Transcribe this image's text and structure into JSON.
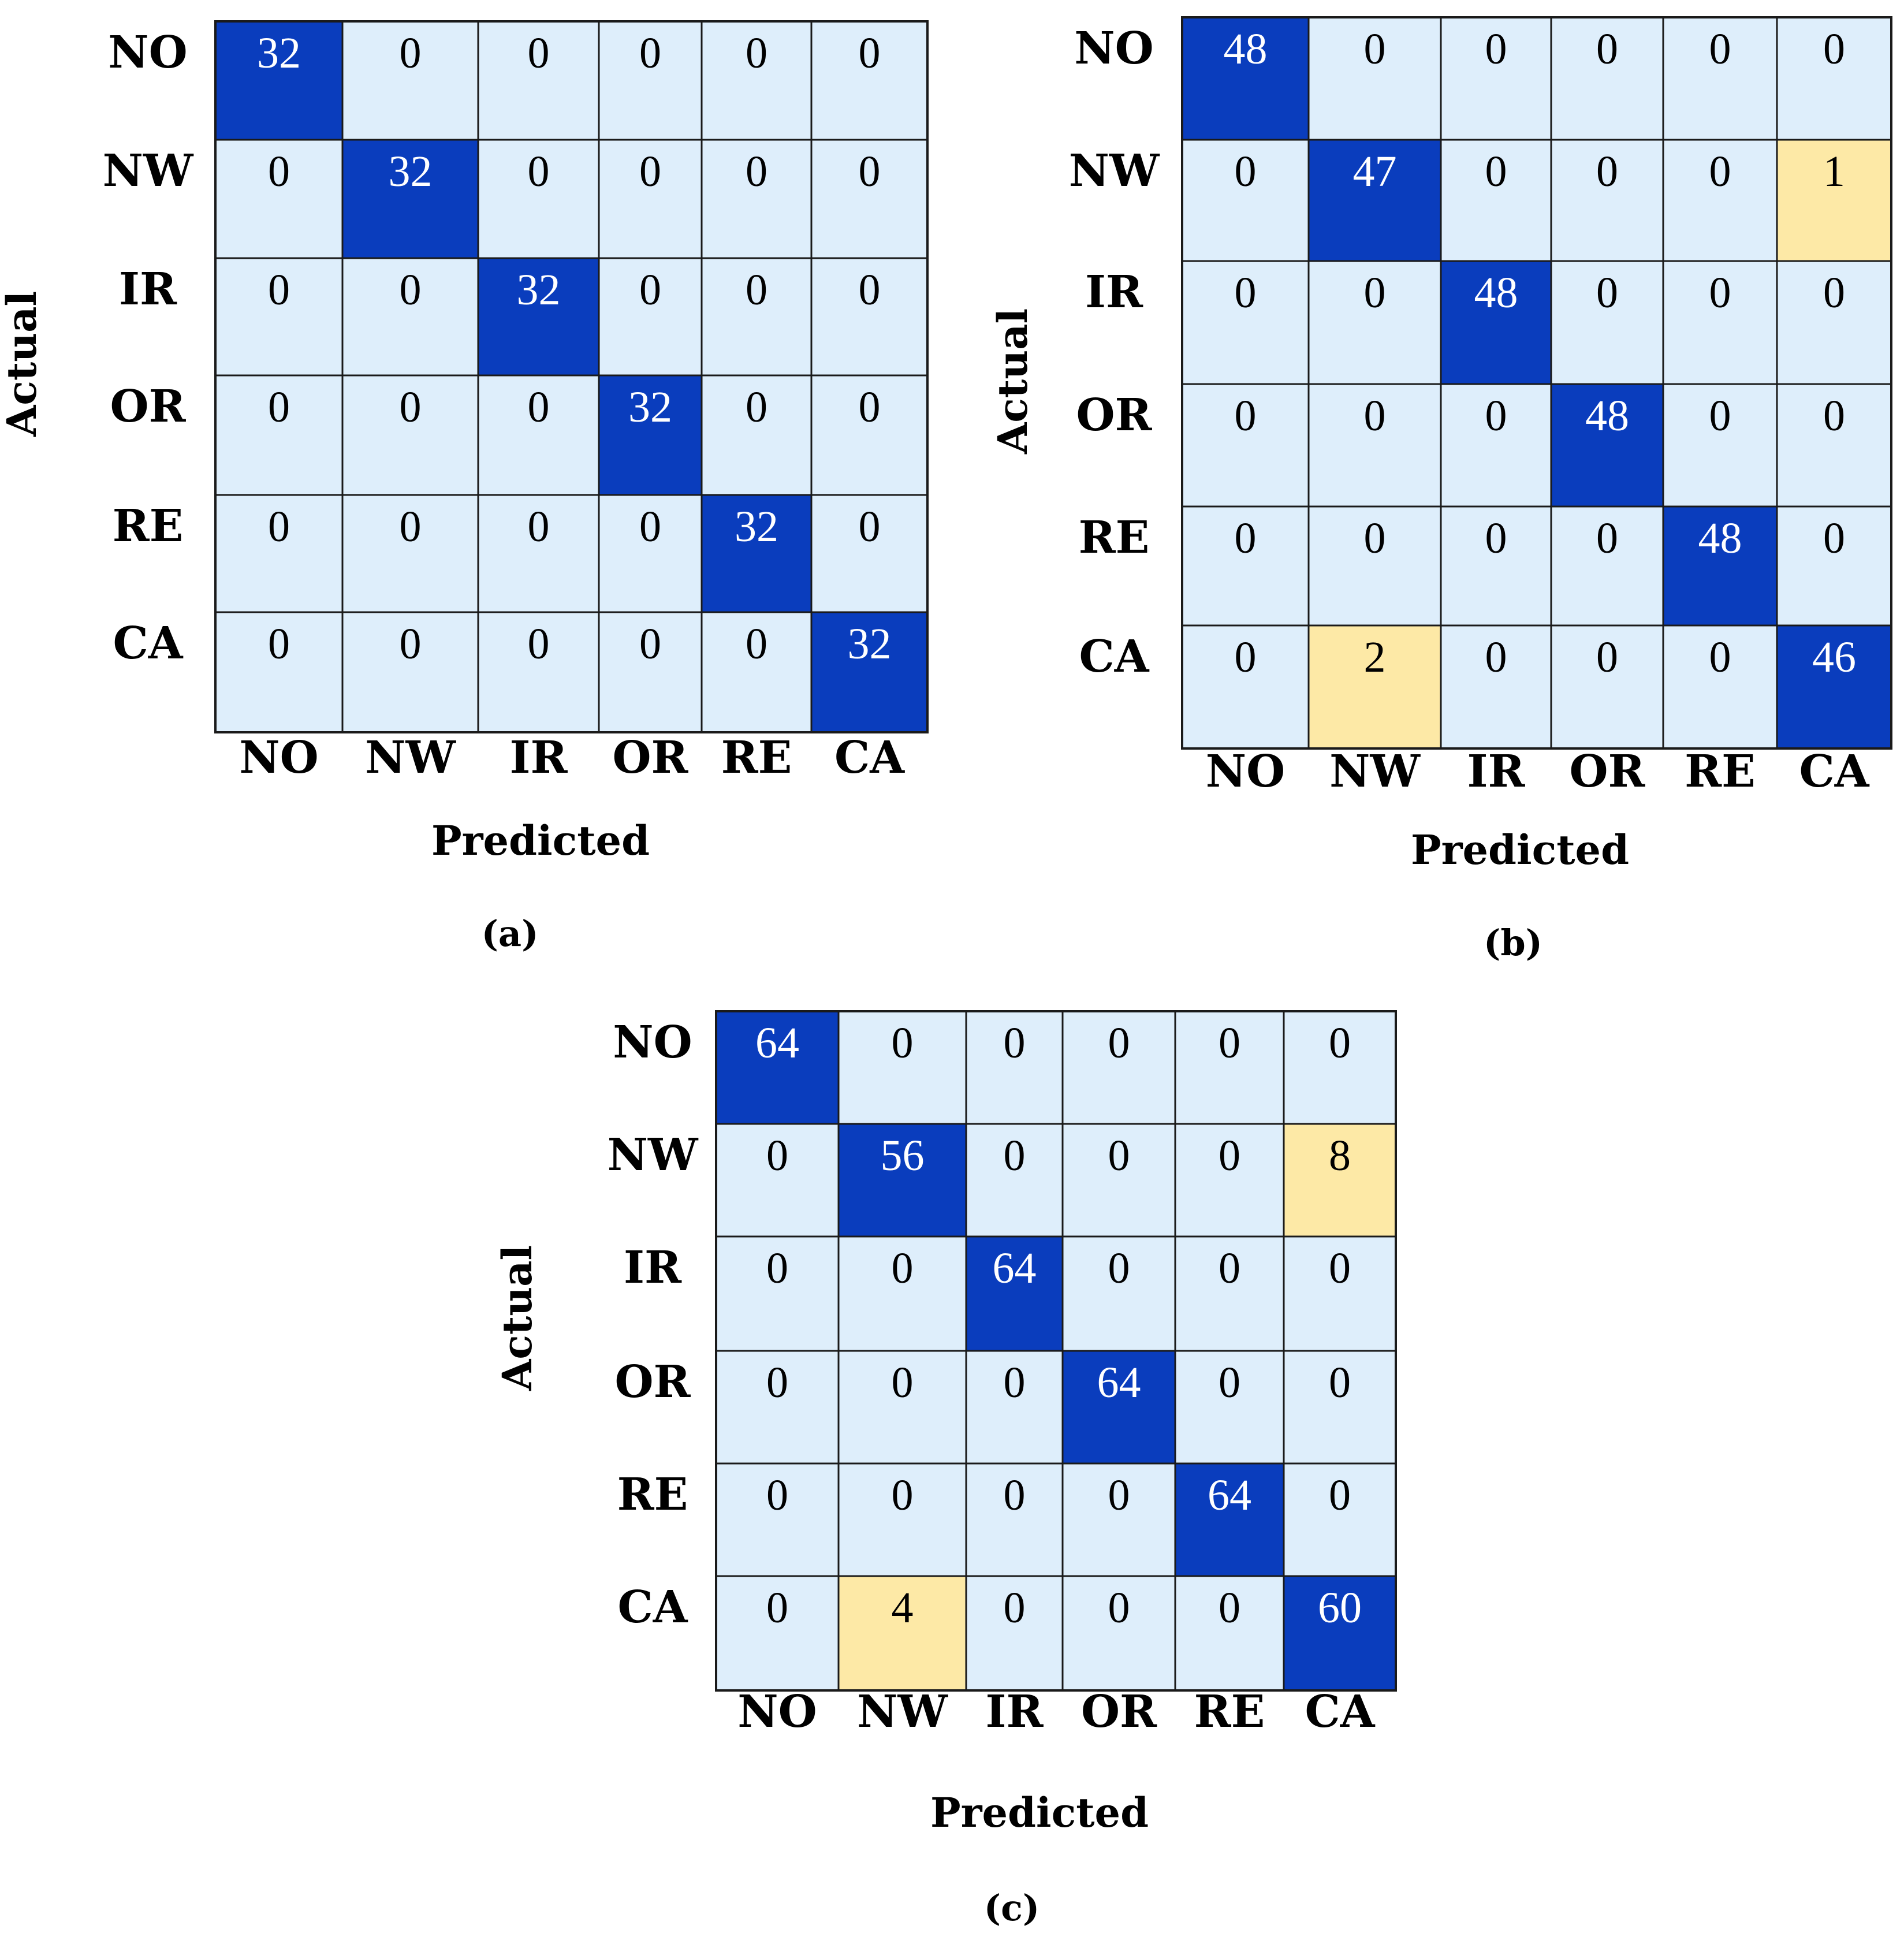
{
  "colors": {
    "diagonal": "#0a3dbd",
    "diagonal_text": "#ffffff",
    "misclassified": "#fde9a6",
    "zero": "#deeefb",
    "grid_line": "#1a1a1a",
    "text": "#000000"
  },
  "chart_data": [
    {
      "type": "heatmap",
      "panel_label": "(a)",
      "xlabel": "Predicted",
      "ylabel": "Actual",
      "row_labels": [
        "NO",
        "NW",
        "IR",
        "OR",
        "RE",
        "CA"
      ],
      "col_labels": [
        "NO",
        "NW",
        "IR",
        "OR",
        "RE",
        "CA"
      ],
      "values": [
        [
          32,
          0,
          0,
          0,
          0,
          0
        ],
        [
          0,
          32,
          0,
          0,
          0,
          0
        ],
        [
          0,
          0,
          32,
          0,
          0,
          0
        ],
        [
          0,
          0,
          0,
          32,
          0,
          0
        ],
        [
          0,
          0,
          0,
          0,
          32,
          0
        ],
        [
          0,
          0,
          0,
          0,
          0,
          32
        ]
      ]
    },
    {
      "type": "heatmap",
      "panel_label": "(b)",
      "xlabel": "Predicted",
      "ylabel": "Actual",
      "row_labels": [
        "NO",
        "NW",
        "IR",
        "OR",
        "RE",
        "CA"
      ],
      "col_labels": [
        "NO",
        "NW",
        "IR",
        "OR",
        "RE",
        "CA"
      ],
      "values": [
        [
          48,
          0,
          0,
          0,
          0,
          0
        ],
        [
          0,
          47,
          0,
          0,
          0,
          1
        ],
        [
          0,
          0,
          48,
          0,
          0,
          0
        ],
        [
          0,
          0,
          0,
          48,
          0,
          0
        ],
        [
          0,
          0,
          0,
          0,
          48,
          0
        ],
        [
          0,
          2,
          0,
          0,
          0,
          46
        ]
      ]
    },
    {
      "type": "heatmap",
      "panel_label": "(c)",
      "xlabel": "Predicted",
      "ylabel": "Actual",
      "row_labels": [
        "NO",
        "NW",
        "IR",
        "OR",
        "RE",
        "CA"
      ],
      "col_labels": [
        "NO",
        "NW",
        "IR",
        "OR",
        "RE",
        "CA"
      ],
      "values": [
        [
          64,
          0,
          0,
          0,
          0,
          0
        ],
        [
          0,
          56,
          0,
          0,
          0,
          8
        ],
        [
          0,
          0,
          64,
          0,
          0,
          0
        ],
        [
          0,
          0,
          0,
          64,
          0,
          0
        ],
        [
          0,
          0,
          0,
          0,
          64,
          0
        ],
        [
          0,
          4,
          0,
          0,
          0,
          60
        ]
      ]
    }
  ]
}
